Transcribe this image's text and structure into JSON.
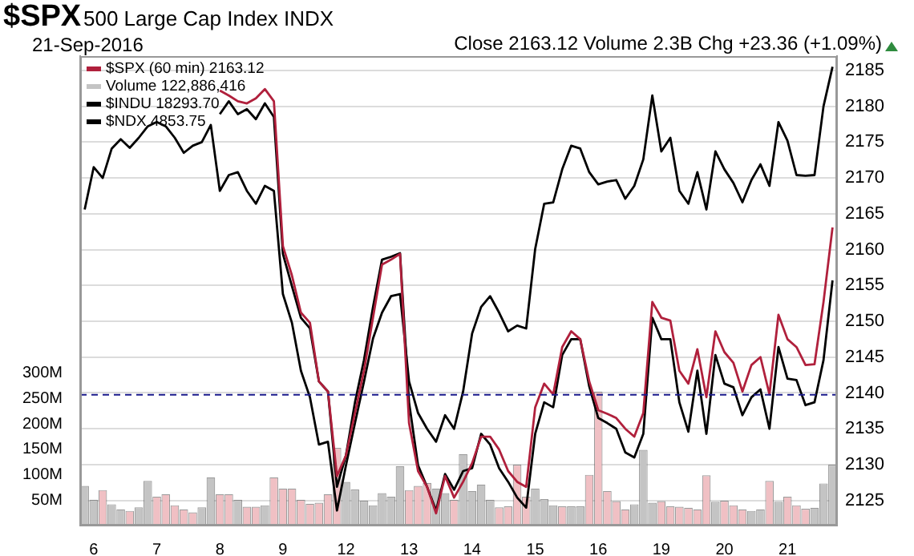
{
  "chart_data": {
    "type": "line",
    "title": "$SPX",
    "subtitle": "500 Large Cap Index  INDX",
    "annotations": [
      "21-Sep-2016",
      "Close 2163.12  Volume 2.3B  Chg +23.36 (+1.09%)"
    ],
    "categories": [
      null,
      "6",
      null,
      null,
      null,
      null,
      null,
      null,
      "7",
      null,
      null,
      null,
      null,
      null,
      null,
      "8",
      null,
      null,
      null,
      null,
      null,
      null,
      "9",
      null,
      null,
      null,
      null,
      null,
      null,
      "12",
      null,
      null,
      null,
      null,
      null,
      null,
      "13",
      null,
      null,
      null,
      null,
      null,
      null,
      "14",
      null,
      null,
      null,
      null,
      null,
      null,
      "15",
      null,
      null,
      null,
      null,
      null,
      null,
      "16",
      null,
      null,
      null,
      null,
      null,
      null,
      "19",
      null,
      null,
      null,
      null,
      null,
      null,
      "20",
      null,
      null,
      null,
      null,
      null,
      null,
      "21",
      null,
      null,
      null,
      null,
      null
    ],
    "series": [
      {
        "name": "$SPX (60 min) 2163.12",
        "color": "#b0203c",
        "values": [
          null,
          null,
          null,
          null,
          null,
          null,
          null,
          null,
          null,
          null,
          null,
          null,
          null,
          null,
          null,
          2182.2,
          2181.5,
          2180.7,
          2180.4,
          2181.1,
          2182.4,
          2180.7,
          2160.5,
          2156.4,
          2151.2,
          2149.8,
          2141.6,
          2140.2,
          2128.4,
          2131.3,
          2137.2,
          2143.1,
          2150.5,
          2157.9,
          2158.6,
          2159.4,
          2135.8,
          2129.1,
          2126.9,
          2123.2,
          2128.4,
          2125.4,
          2127.6,
          2130.2,
          2133.9,
          2133.9,
          2132.1,
          2129.1,
          2127.6,
          2126.9,
          2138.0,
          2141.3,
          2139.8,
          2146.4,
          2148.6,
          2147.5,
          2141.6,
          2137.6,
          2137.1,
          2136.5,
          2135.0,
          2133.9,
          2137.2,
          2152.7,
          2150.5,
          2150.1,
          2143.1,
          2141.3,
          2146.1,
          2139.4,
          2148.6,
          2145.7,
          2144.2,
          2140.2,
          2143.9,
          2145.0,
          2139.8,
          2150.9,
          2147.5,
          2146.4,
          2143.9,
          2144.0,
          2152.7,
          2163.1
        ]
      },
      {
        "name": "Volume 122,886,416",
        "type": "bar",
        "axis": "y2",
        "colors": [
          "#c4c4c4",
          "#c4c4c4",
          "#f0c0c4",
          "#c4c4c4",
          "#c4c4c4",
          "#f0c0c4",
          "#c4c4c4",
          "#c4c4c4",
          "#f0c0c4",
          "#f0c0c4",
          "#f0c0c4",
          "#f0c0c4",
          "#f0c0c4",
          "#c4c4c4",
          "#c4c4c4",
          "#f0c0c4",
          "#f0c0c4",
          "#c4c4c4",
          "#f0c0c4",
          "#f0c0c4",
          "#c4c4c4",
          "#f0c0c4",
          "#f0c0c4",
          "#f0c0c4",
          "#f0c0c4",
          "#f0c0c4",
          "#f0c0c4",
          "#f0c0c4",
          "#f0c0c4",
          "#c4c4c4",
          "#c4c4c4",
          "#c4c4c4",
          "#c4c4c4",
          "#c4c4c4",
          "#c4c4c4",
          "#c4c4c4",
          "#f0c0c4",
          "#f0c0c4",
          "#f0c0c4",
          "#c4c4c4",
          "#c4c4c4",
          "#f0c0c4",
          "#c4c4c4",
          "#c4c4c4",
          "#c4c4c4",
          "#c4c4c4",
          "#f0c0c4",
          "#f0c0c4",
          "#f0c0c4",
          "#f0c0c4",
          "#c4c4c4",
          "#c4c4c4",
          "#c4c4c4",
          "#f0c0c4",
          "#c4c4c4",
          "#c4c4c4",
          "#f0c0c4",
          "#f0c0c4",
          "#f0c0c4",
          "#f0c0c4",
          "#f0c0c4",
          "#c4c4c4",
          "#c4c4c4",
          "#c4c4c4",
          "#f0c0c4",
          "#f0c0c4",
          "#f0c0c4",
          "#f0c0c4",
          "#f0c0c4",
          "#f0c0c4",
          "#c4c4c4",
          "#f0c0c4",
          "#f0c0c4",
          "#f0c0c4",
          "#c4c4c4",
          "#c4c4c4",
          "#f0c0c4",
          "#c4c4c4",
          "#f0c0c4",
          "#f0c0c4",
          "#f0c0c4",
          "#c4c4c4",
          "#c4c4c4",
          "#c4c4c4"
        ],
        "values": [
          78,
          51,
          70,
          42,
          32,
          29,
          36,
          88,
          57,
          62,
          40,
          32,
          26,
          36,
          95,
          62,
          62,
          51,
          37,
          37,
          40,
          95,
          73,
          73,
          51,
          43,
          45,
          62,
          153,
          86,
          71,
          49,
          40,
          64,
          57,
          117,
          70,
          78,
          84,
          73,
          64,
          51,
          141,
          68,
          81,
          51,
          36,
          38,
          120,
          57,
          73,
          52,
          40,
          38,
          38,
          38,
          100,
          264,
          68,
          48,
          32,
          42,
          149,
          45,
          48,
          38,
          37,
          35,
          32,
          99,
          47,
          49,
          40,
          32,
          29,
          32,
          88,
          47,
          57,
          40,
          33,
          35,
          83,
          120
        ]
      },
      {
        "name": "$INDU 18293.70",
        "color": "#000000",
        "values": [
          null,
          null,
          null,
          null,
          null,
          null,
          null,
          null,
          null,
          null,
          null,
          null,
          null,
          null,
          null,
          2178.9,
          2180.7,
          2178.9,
          2179.6,
          2178.2,
          2180.4,
          2178.5,
          2159.4,
          2154.9,
          2150.5,
          2149.0,
          2141.6,
          2140.2,
          2126.9,
          2131.3,
          2138.7,
          2144.6,
          2152.0,
          2158.6,
          2159.0,
          2159.5,
          2138.7,
          2129.9,
          2126.9,
          2123.6,
          2128.7,
          2126.5,
          2129.1,
          2129.5,
          2134.3,
          2132.8,
          2129.5,
          2127.6,
          2125.4,
          2124.0,
          2134.3,
          2138.7,
          2138.0,
          2145.3,
          2147.5,
          2147.5,
          2140.9,
          2136.5,
          2135.8,
          2135.0,
          2131.7,
          2131.0,
          2134.3,
          2150.5,
          2147.5,
          2147.5,
          2138.7,
          2134.6,
          2143.1,
          2134.3,
          2145.3,
          2141.3,
          2140.8,
          2136.9,
          2139.4,
          2140.5,
          2135.0,
          2146.4,
          2142.0,
          2141.8,
          2138.3,
          2138.7,
          2144.6,
          2155.7
        ]
      },
      {
        "name": "$NDX 4853.75",
        "color": "#000000",
        "values": [
          2165.6,
          2171.5,
          2170.0,
          2174.1,
          2175.4,
          2174.2,
          2175.6,
          2177.2,
          2177.8,
          2177.2,
          2175.6,
          2173.5,
          2174.5,
          2175.0,
          2177.4,
          2168.2,
          2170.4,
          2170.8,
          2168.2,
          2166.4,
          2168.9,
          2168.2,
          2153.8,
          2149.8,
          2143.1,
          2139.4,
          2132.8,
          2133.2,
          2123.6,
          2129.9,
          2135.8,
          2141.6,
          2147.6,
          2151.2,
          2153.5,
          2153.8,
          2141.6,
          2137.2,
          2135.0,
          2133.2,
          2136.9,
          2135.0,
          2140.2,
          2148.3,
          2152.0,
          2153.5,
          2151.2,
          2148.6,
          2149.4,
          2149.0,
          2160.1,
          2166.4,
          2166.6,
          2171.2,
          2174.5,
          2174.1,
          2170.8,
          2169.1,
          2169.5,
          2169.7,
          2167.1,
          2168.9,
          2172.6,
          2181.5,
          2173.7,
          2175.6,
          2168.2,
          2166.4,
          2170.8,
          2165.6,
          2173.7,
          2171.2,
          2169.3,
          2166.6,
          2169.7,
          2171.9,
          2168.9,
          2177.8,
          2175.2,
          2170.4,
          2170.3,
          2170.4,
          2180.0,
          2185.5
        ]
      }
    ],
    "ylim": [
      2121.5,
      2187
    ],
    "yticks": [
      2125,
      2130,
      2135,
      2140,
      2145,
      2150,
      2155,
      2160,
      2165,
      2170,
      2175,
      2180,
      2185
    ],
    "y2lim": [
      0,
      925
    ],
    "y2ticks": [
      {
        "value": 50,
        "label": "50M"
      },
      {
        "value": 100,
        "label": "100M"
      },
      {
        "value": 150,
        "label": "150M"
      },
      {
        "value": 200,
        "label": "200M"
      },
      {
        "value": 250,
        "label": "250M"
      },
      {
        "value": 300,
        "label": "300M"
      }
    ],
    "ref_lines": [
      {
        "axis": "y",
        "value": 2139.76,
        "color": "#1a1a8c",
        "line_style": "dashed"
      }
    ],
    "grid": "y",
    "legend": "top left",
    "marker": "none"
  }
}
